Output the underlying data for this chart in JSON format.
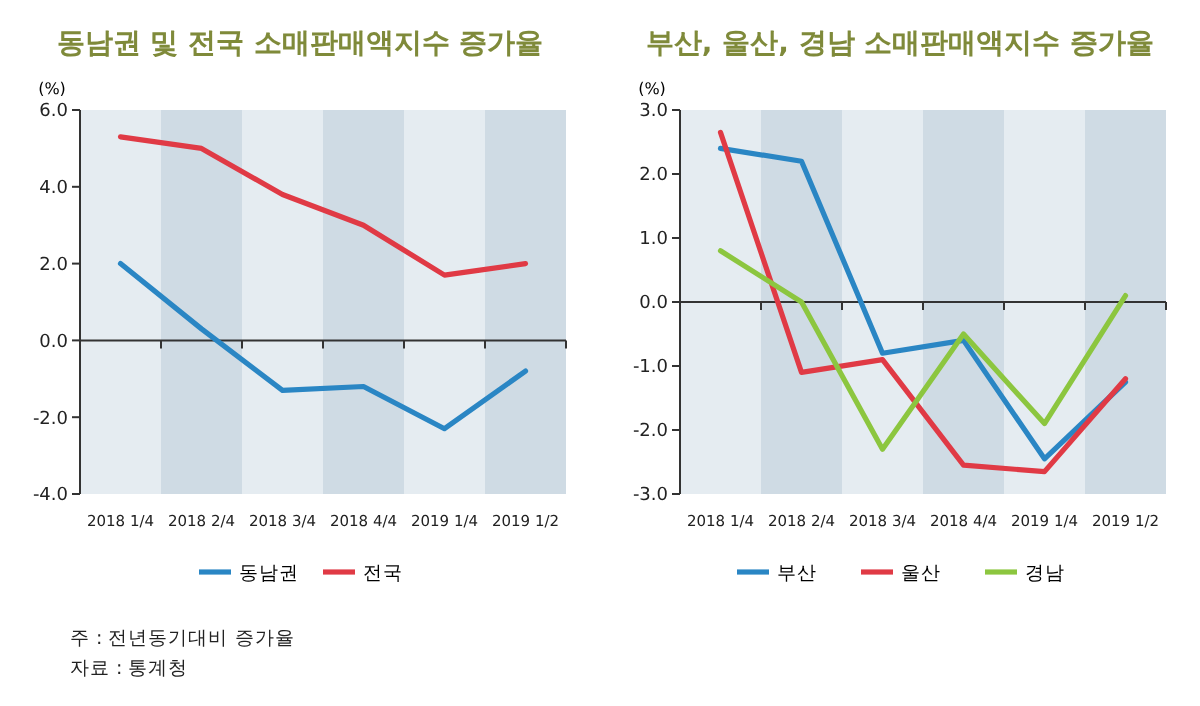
{
  "chart_data": [
    {
      "type": "line",
      "title": "동남권 및 전국 소매판매액지수 증가율",
      "ylabel": "(%)",
      "categories": [
        "2018 1/4",
        "2018 2/4",
        "2018 3/4",
        "2018 4/4",
        "2019 1/4",
        "2019 1/2"
      ],
      "series": [
        {
          "name": "동남권",
          "color": "#2a86c4",
          "values": [
            2.0,
            0.3,
            -1.3,
            -1.2,
            -2.3,
            -0.8
          ]
        },
        {
          "name": "전국",
          "color": "#e03a45",
          "values": [
            5.3,
            5.0,
            3.8,
            3.0,
            1.7,
            2.0
          ]
        }
      ],
      "ylim": [
        -4,
        6
      ],
      "yticks": [
        {
          "value": -4,
          "label": "-4.0"
        },
        {
          "value": -2,
          "label": "-2.0"
        },
        {
          "value": 0,
          "label": "0.0"
        },
        {
          "value": 2,
          "label": "2.0"
        },
        {
          "value": 4,
          "label": "4.0"
        },
        {
          "value": 6,
          "label": "6.0"
        }
      ],
      "legend": "bottom",
      "annotations": [
        "주 : 전년동기대비 증가율",
        "자료 : 통계청"
      ]
    },
    {
      "type": "line",
      "title": "부산, 울산, 경남 소매판매액지수 증가율",
      "ylabel": "(%)",
      "categories": [
        "2018 1/4",
        "2018 2/4",
        "2018 3/4",
        "2018 4/4",
        "2019 1/4",
        "2019 1/2"
      ],
      "series": [
        {
          "name": "부산",
          "color": "#2a86c4",
          "values": [
            2.4,
            2.2,
            -0.8,
            -0.6,
            -2.45,
            -1.25
          ]
        },
        {
          "name": "울산",
          "color": "#e03a45",
          "values": [
            2.65,
            -1.1,
            -0.9,
            -2.55,
            -2.65,
            -1.2
          ]
        },
        {
          "name": "경남",
          "color": "#8cc63f",
          "values": [
            0.8,
            0.0,
            -2.3,
            -0.5,
            -1.9,
            0.1
          ]
        }
      ],
      "ylim": [
        -3,
        3
      ],
      "yticks": [
        {
          "value": -3,
          "label": "-3.0"
        },
        {
          "value": -2,
          "label": "-2.0"
        },
        {
          "value": -1,
          "label": "-1.0"
        },
        {
          "value": 0,
          "label": "0.0"
        },
        {
          "value": 1,
          "label": "1.0"
        },
        {
          "value": 2,
          "label": "2.0"
        },
        {
          "value": 3,
          "label": "3.0"
        }
      ],
      "legend": "bottom"
    }
  ]
}
